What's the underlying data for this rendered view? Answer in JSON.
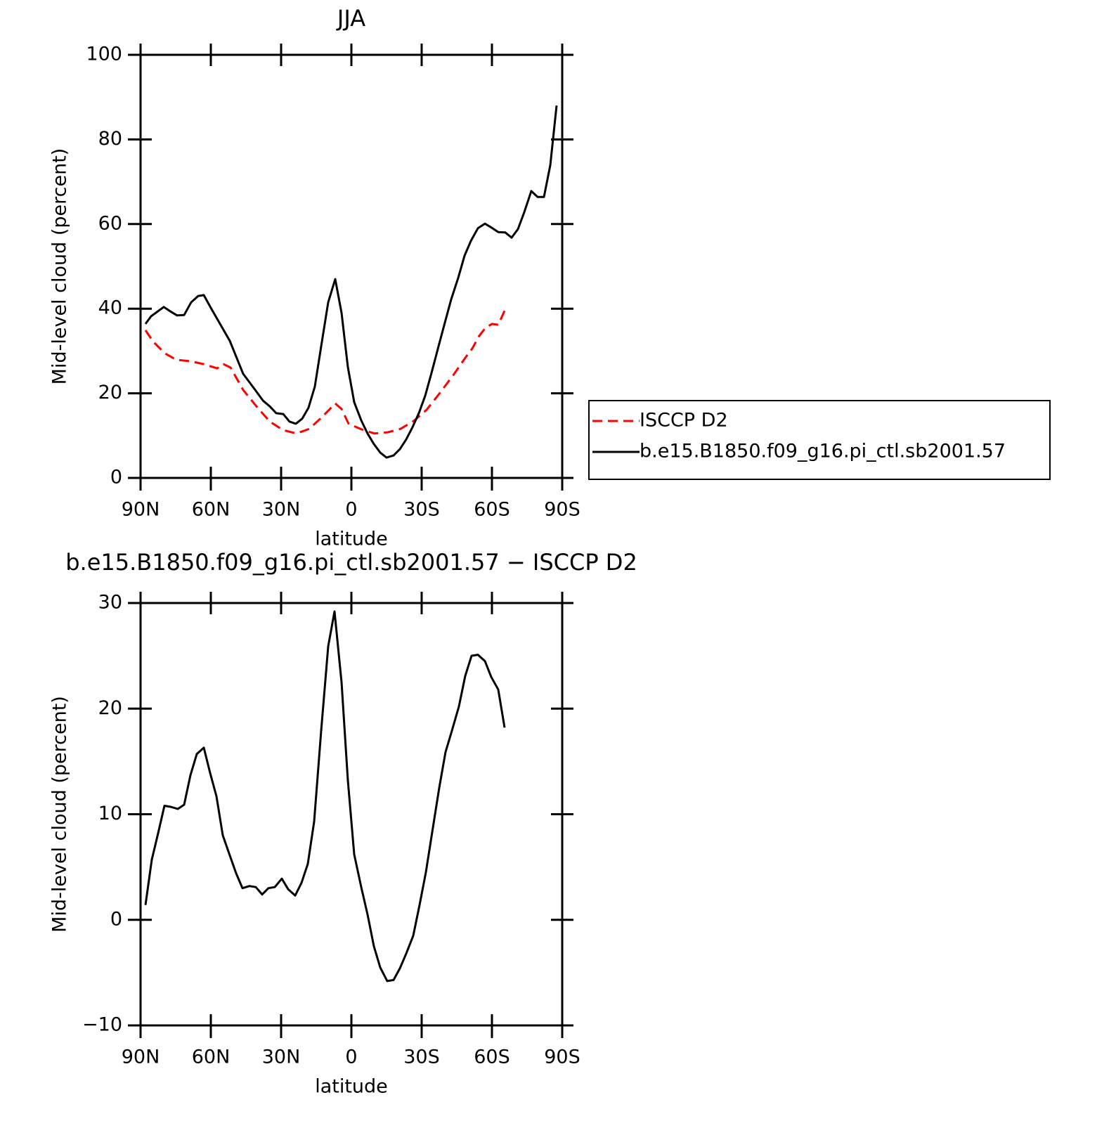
{
  "chart_data": [
    {
      "type": "line",
      "title": "JJA",
      "ylabel": "Mid-level cloud (percent)",
      "xlabel": "latitude",
      "xlim": [
        90,
        -90
      ],
      "xticks": [
        {
          "value": 90,
          "label": "90N"
        },
        {
          "value": 60,
          "label": "60N"
        },
        {
          "value": 30,
          "label": "30N"
        },
        0,
        {
          "value": -30,
          "label": "30S"
        },
        {
          "value": -60,
          "label": "60S"
        },
        {
          "value": -90,
          "label": "90S"
        }
      ],
      "ylim": [
        0,
        100
      ],
      "yticks": [
        0,
        20,
        40,
        60,
        80,
        100
      ],
      "legend": "right",
      "series": [
        {
          "name": "ISCCP D2",
          "color": "#ff0000",
          "dashed": true,
          "x": [
            87.9,
            84.6,
            79.5,
            74.7,
            69,
            63,
            57.3,
            54.6,
            51.6,
            46.2,
            40.5,
            34.8,
            29.1,
            23.4,
            18,
            12.3,
            6.9,
            4.2,
            1.2,
            -4.2,
            -9.9,
            -15.6,
            -21,
            -26.7,
            -32.1,
            -37.8,
            -43.5,
            -48.9,
            -51.6,
            -54.6,
            -57.3,
            -60,
            -62.7,
            -65.7
          ],
          "values": [
            34.9,
            32.2,
            29.4,
            27.9,
            27.6,
            26.9,
            25.9,
            26.9,
            26.1,
            20.8,
            16.9,
            13.3,
            11.3,
            10.5,
            11.6,
            14.5,
            17.6,
            16.3,
            12.8,
            11.5,
            10.5,
            10.8,
            11.6,
            13.5,
            16.1,
            20.1,
            24.3,
            28.6,
            30.6,
            33.6,
            35.5,
            36.4,
            36.2,
            39.9
          ]
        },
        {
          "name": "b.e15.B1850.f09_g16.pi_ctl.sb2001.57",
          "color": "#000000",
          "dashed": false,
          "x": [
            87.9,
            85.5,
            80.1,
            77.4,
            74.4,
            71.4,
            68.4,
            65.4,
            63,
            60,
            51.9,
            46.2,
            40.8,
            37.8,
            34.8,
            32.1,
            29.1,
            26.4,
            23.7,
            21,
            18.3,
            15.6,
            12.9,
            9.9,
            6.9,
            4.2,
            1.5,
            -1.2,
            -4.2,
            -6.9,
            -9.6,
            -12.3,
            -15,
            -18,
            -20.7,
            -23.4,
            -26.1,
            -28.8,
            -31.5,
            -34.2,
            -37.2,
            -39.9,
            -42.6,
            -45.6,
            -48.3,
            -51,
            -54,
            -57,
            -60,
            -62.7,
            -65.7,
            -68.4,
            -71.1,
            -73.8,
            -76.8,
            -79.5,
            -82.2,
            -84.9,
            -87.6
          ],
          "values": [
            36.4,
            38.2,
            40.4,
            39.4,
            38.4,
            38.5,
            41.5,
            43,
            43.2,
            40.2,
            32.4,
            24.6,
            20.6,
            18.3,
            16.9,
            15.3,
            15.1,
            13.3,
            12.8,
            14,
            16.6,
            21.6,
            31.1,
            41.5,
            47,
            39,
            26.2,
            17.9,
            13.6,
            10.5,
            8,
            6,
            4.8,
            5.3,
            6.8,
            9.1,
            12,
            15.3,
            19.4,
            24.8,
            31.1,
            36.7,
            42.2,
            47.3,
            52.5,
            56,
            59,
            60.1,
            59.1,
            58.1,
            58,
            56.8,
            58.8,
            62.8,
            67.8,
            66.4,
            66.4,
            73.9,
            88
          ]
        }
      ]
    },
    {
      "type": "line",
      "title": "b.e15.B1850.f09_g16.pi_ctl.sb2001.57 − ISCCP D2",
      "ylabel": "Mid-level cloud (percent)",
      "xlabel": "latitude",
      "xlim": [
        90,
        -90
      ],
      "xticks": [
        {
          "value": 90,
          "label": "90N"
        },
        {
          "value": 60,
          "label": "60N"
        },
        {
          "value": 30,
          "label": "30N"
        },
        0,
        {
          "value": -30,
          "label": "30S"
        },
        {
          "value": -60,
          "label": "60S"
        },
        {
          "value": -90,
          "label": "90S"
        }
      ],
      "ylim": [
        -10,
        30
      ],
      "yticks": [
        {
          "value": -10,
          "label": "−10"
        },
        0,
        10,
        20,
        30
      ],
      "series": [
        {
          "color": "#000000",
          "dashed": false,
          "x": [
            87.9,
            85.2,
            82.5,
            79.8,
            77.1,
            74.1,
            71.4,
            68.7,
            66,
            63,
            60.3,
            57.6,
            54.9,
            51.9,
            49.2,
            46.5,
            43.5,
            40.8,
            38.1,
            35.4,
            32.7,
            29.7,
            27,
            24,
            21.3,
            18.6,
            15.9,
            12.9,
            9.9,
            7.2,
            4.2,
            1.5,
            -1.2,
            -4.2,
            -6.9,
            -9.6,
            -12.3,
            -15.3,
            -18,
            -20.7,
            -23.4,
            -26.4,
            -29.1,
            -31.8,
            -34.5,
            -37.5,
            -40.2,
            -42.9,
            -45.9,
            -48.6,
            -51.3,
            -54,
            -57,
            -59.7,
            -62.7,
            -65.4
          ],
          "values": [
            1.4,
            5.7,
            8.2,
            10.8,
            10.7,
            10.5,
            10.9,
            13.7,
            15.7,
            16.3,
            13.9,
            11.7,
            8,
            6.1,
            4.4,
            3,
            3.2,
            3.1,
            2.4,
            3,
            3.1,
            3.9,
            2.9,
            2.3,
            3.5,
            5.3,
            9.3,
            17.9,
            25.9,
            29.2,
            22.5,
            13.2,
            6.2,
            3.1,
            0.5,
            -2.5,
            -4.5,
            -5.8,
            -5.7,
            -4.6,
            -3.2,
            -1.5,
            1.4,
            4.5,
            8.3,
            12.5,
            15.9,
            17.9,
            20.2,
            23.1,
            25,
            25.1,
            24.5,
            23,
            21.8,
            18.2
          ]
        }
      ]
    }
  ]
}
